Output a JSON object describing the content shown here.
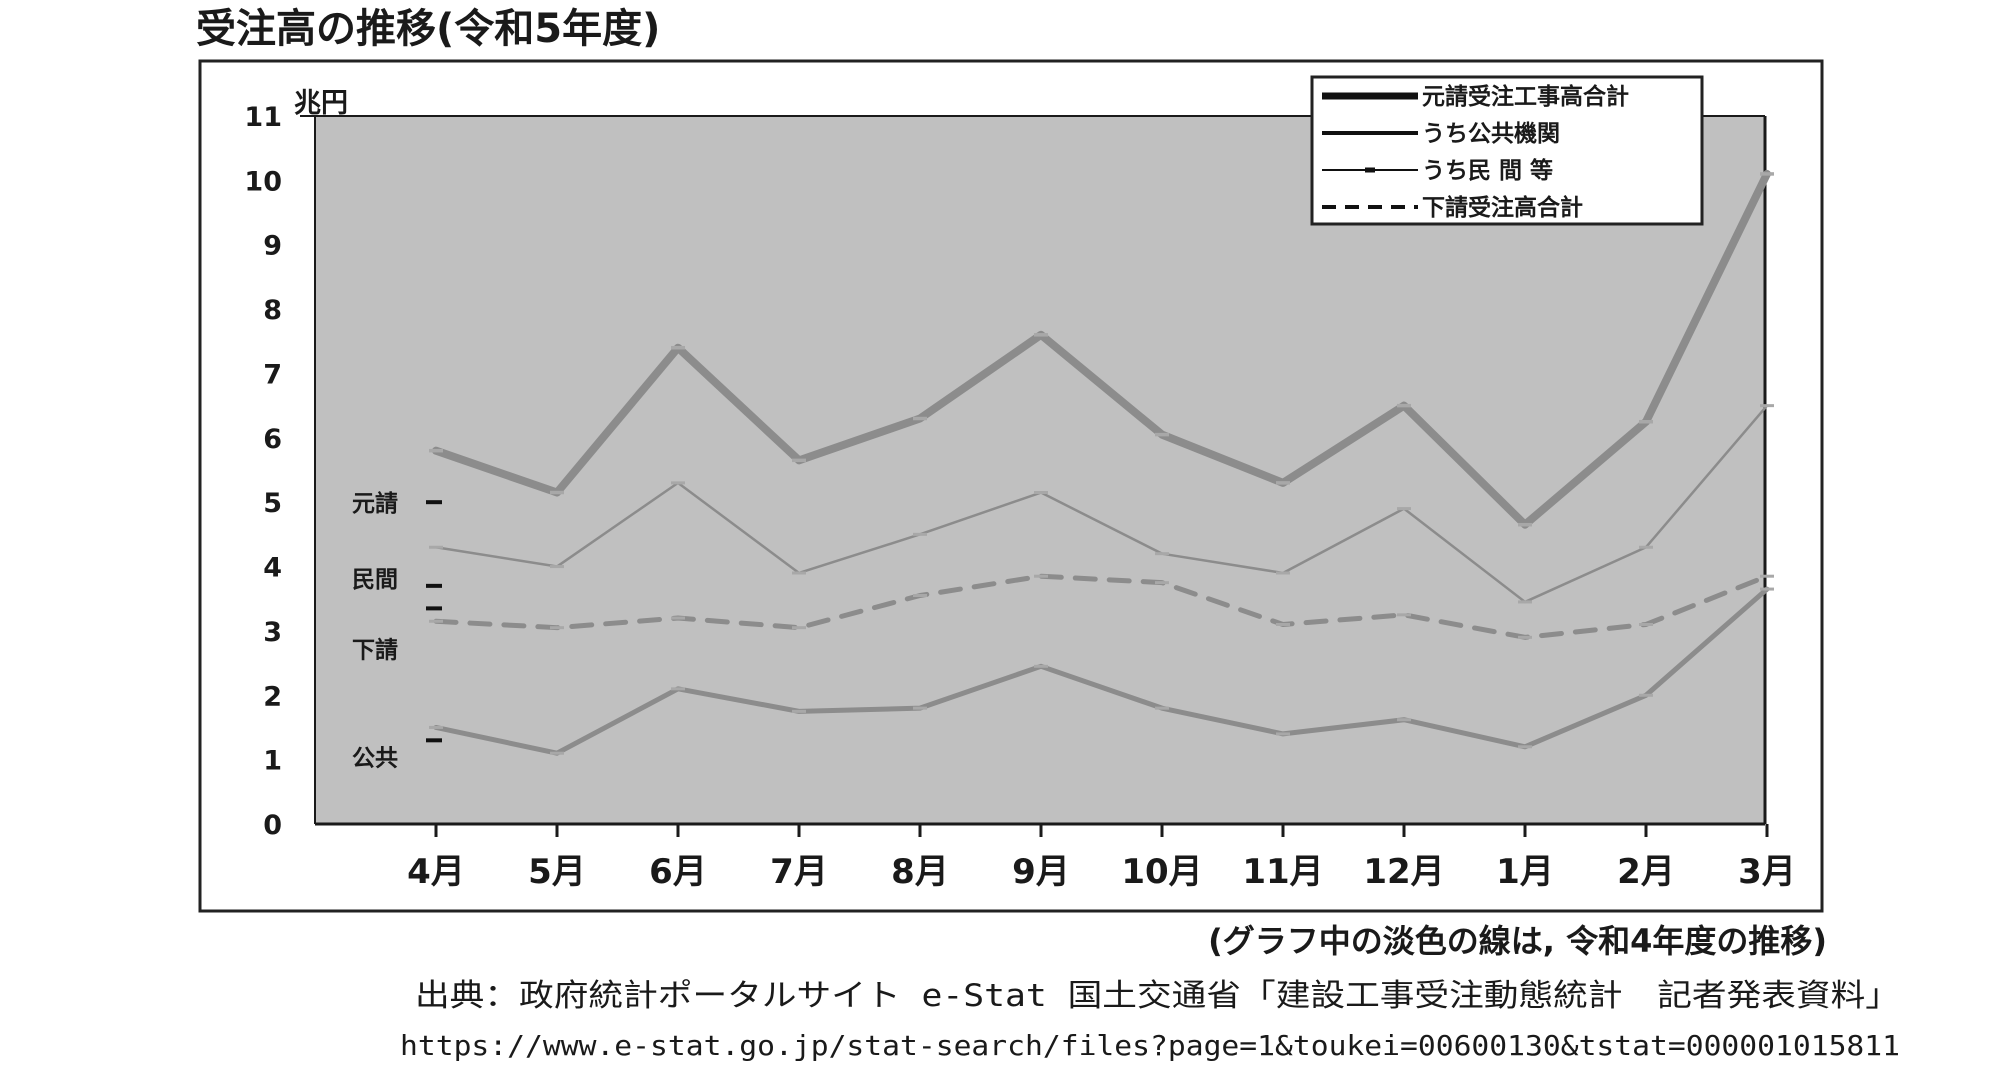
{
  "title": "受注高の推移(令和5年度)",
  "note": "(グラフ中の淡色の線は, 令和4年度の推移)",
  "source": "出典：政府統計ポータルサイト e-Stat 国土交通省「建設工事受注動態統計　記者発表資料」",
  "url": "https://www.e-stat.go.jp/stat-search/files?page=1&toukei=00600130&tstat=000001015811",
  "chart_data": {
    "type": "line",
    "y_unit_label": "兆円",
    "ylim": [
      0,
      11
    ],
    "y_ticks": [
      "0",
      "1",
      "2",
      "3",
      "4",
      "5",
      "6",
      "7",
      "8",
      "9",
      "10",
      "11"
    ],
    "categories": [
      "4月",
      "5月",
      "6月",
      "7月",
      "8月",
      "9月",
      "10月",
      "11月",
      "12月",
      "1月",
      "2月",
      "3月"
    ],
    "grid": false,
    "legend_position": "top-right",
    "legend": [
      "元請受注工事高合計",
      "うち公共機関",
      "うち民 間 等",
      "下請受注高合計"
    ],
    "series": [
      {
        "name": "元請受注工事高合計",
        "style": "thick-solid",
        "color": "#8c8c8c",
        "values": [
          5.8,
          5.15,
          7.4,
          5.65,
          6.3,
          7.6,
          6.05,
          5.3,
          6.5,
          4.65,
          6.25,
          10.1
        ]
      },
      {
        "name": "うち公共機関",
        "style": "medium-solid",
        "color": "#8c8c8c",
        "values": [
          1.5,
          1.1,
          2.1,
          1.75,
          1.8,
          2.45,
          1.8,
          1.4,
          1.62,
          1.2,
          2.0,
          3.65
        ]
      },
      {
        "name": "うち民 間 等",
        "style": "thin-solid",
        "color": "#8c8c8c",
        "values": [
          4.3,
          4.0,
          5.3,
          3.9,
          4.5,
          5.15,
          4.2,
          3.9,
          4.9,
          3.45,
          4.3,
          6.5
        ]
      },
      {
        "name": "下請受注高合計",
        "style": "dashed",
        "color": "#8c8c8c",
        "values": [
          3.15,
          3.05,
          3.2,
          3.05,
          3.55,
          3.85,
          3.75,
          3.1,
          3.25,
          2.9,
          3.1,
          3.85
        ]
      }
    ],
    "prior_year_markers": [
      {
        "label": "元請",
        "value": 5.0
      },
      {
        "label": "民間",
        "value": 3.7
      },
      {
        "label": "下請",
        "value": 3.35
      },
      {
        "label": "公共",
        "value": 1.3
      }
    ],
    "plot_background": "#c0c0c0",
    "line_color": "#8c8c8c"
  }
}
